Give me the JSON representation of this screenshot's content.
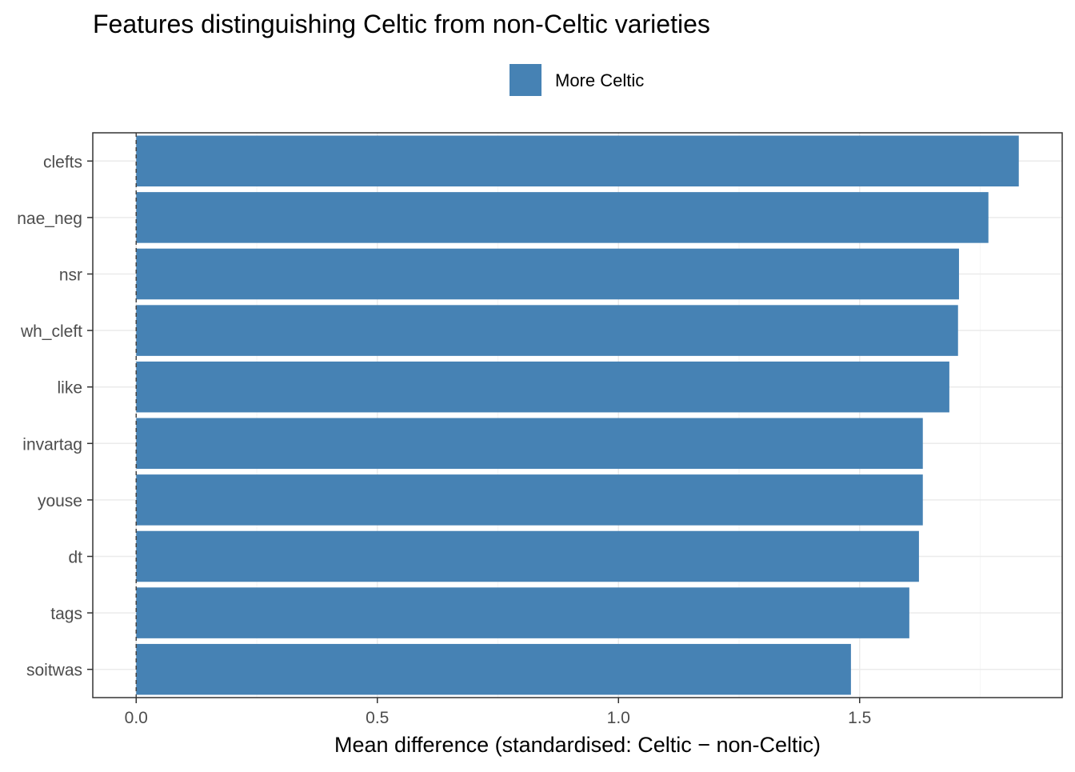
{
  "chart_data": {
    "type": "bar",
    "orientation": "horizontal",
    "title": "Features distinguishing Celtic from non-Celtic varieties",
    "xlabel": "Mean difference (standardised: Celtic − non-Celtic)",
    "ylabel": "",
    "categories": [
      "clefts",
      "nae_neg",
      "nsr",
      "wh_cleft",
      "like",
      "invartag",
      "youse",
      "dt",
      "tags",
      "soitwas"
    ],
    "series": [
      {
        "name": "More Celtic",
        "values": [
          1.83,
          1.767,
          1.706,
          1.704,
          1.686,
          1.631,
          1.631,
          1.623,
          1.603,
          1.482
        ],
        "color": "#4682B4"
      }
    ],
    "xlim": [
      -0.09,
      1.92
    ],
    "xticks": [
      0.0,
      0.5,
      1.0,
      1.5
    ],
    "xtick_labels": [
      "0.0",
      "0.5",
      "1.0",
      "1.5"
    ],
    "reference_line": {
      "x": 0,
      "style": "dashed"
    },
    "grid": true,
    "legend": {
      "position": "top",
      "entries": [
        "More Celtic"
      ]
    }
  }
}
